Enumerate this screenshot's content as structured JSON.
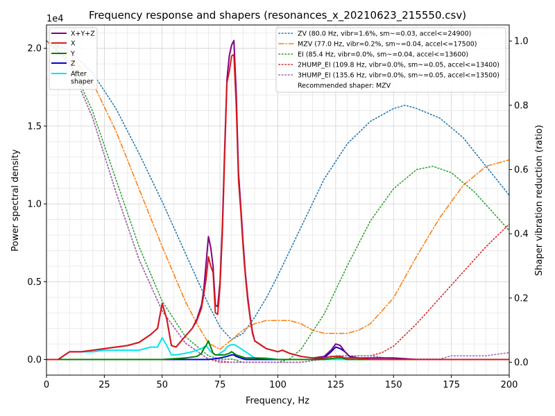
{
  "chart_data": {
    "type": "line",
    "title": "Frequency response and shapers (resonances_x_20210623_215550.csv)",
    "xlabel": "Frequency, Hz",
    "ylabel": "Power spectral density",
    "y2label": "Shaper vibration reduction (ratio)",
    "y_offset_label": "1e4",
    "xlim": [
      0,
      200
    ],
    "ylim": [
      -0.1,
      2.15
    ],
    "y2lim": [
      -0.04,
      1.05
    ],
    "xticks": [
      "0",
      "25",
      "50",
      "75",
      "100",
      "125",
      "150",
      "175",
      "200"
    ],
    "yticks": [
      "0.0",
      "0.5",
      "1.0",
      "1.5",
      "2.0"
    ],
    "y2ticks": [
      "0.0",
      "0.2",
      "0.4",
      "0.6",
      "0.8",
      "1.0"
    ],
    "grid": true,
    "psd_series": [
      {
        "name": "X+Y+Z",
        "color": "#800080",
        "x": [
          0,
          5,
          10,
          15,
          20,
          25,
          30,
          35,
          40,
          45,
          48,
          50,
          52,
          54,
          56,
          60,
          63,
          65,
          67,
          68,
          69,
          70,
          71,
          72,
          73,
          74,
          75,
          76,
          77,
          78,
          79,
          80,
          81,
          82,
          83,
          84,
          85,
          86,
          87,
          88,
          89,
          90,
          92,
          95,
          100,
          102,
          105,
          110,
          115,
          120,
          123,
          125,
          127,
          129,
          131,
          135,
          140,
          150,
          160,
          170,
          180,
          190,
          200
        ],
        "values": [
          0.0,
          0.0,
          0.05,
          0.05,
          0.06,
          0.07,
          0.08,
          0.09,
          0.11,
          0.16,
          0.2,
          0.36,
          0.26,
          0.09,
          0.08,
          0.15,
          0.2,
          0.26,
          0.35,
          0.45,
          0.62,
          0.79,
          0.72,
          0.6,
          0.35,
          0.34,
          0.5,
          0.85,
          1.35,
          1.8,
          1.95,
          2.02,
          2.05,
          1.72,
          1.2,
          0.98,
          0.75,
          0.55,
          0.4,
          0.28,
          0.18,
          0.12,
          0.1,
          0.07,
          0.05,
          0.06,
          0.04,
          0.02,
          0.01,
          0.02,
          0.06,
          0.1,
          0.09,
          0.05,
          0.02,
          0.01,
          0.01,
          0.01,
          0.0,
          0.0,
          0.0,
          0.0,
          0.0
        ]
      },
      {
        "name": "X",
        "color": "#d61a1a",
        "x": [
          0,
          5,
          10,
          15,
          20,
          25,
          30,
          35,
          40,
          45,
          48,
          50,
          52,
          54,
          56,
          60,
          63,
          65,
          67,
          68,
          69,
          70,
          71,
          72,
          73,
          74,
          75,
          76,
          77,
          78,
          79,
          80,
          81,
          82,
          83,
          84,
          85,
          86,
          87,
          88,
          89,
          90,
          92,
          95,
          100,
          102,
          105,
          110,
          115,
          120,
          123,
          125,
          127,
          129,
          131,
          135,
          140,
          150,
          160,
          170,
          180,
          190,
          200
        ],
        "values": [
          0.0,
          0.0,
          0.05,
          0.05,
          0.06,
          0.07,
          0.08,
          0.09,
          0.11,
          0.16,
          0.2,
          0.36,
          0.26,
          0.09,
          0.08,
          0.15,
          0.2,
          0.25,
          0.33,
          0.42,
          0.52,
          0.66,
          0.6,
          0.56,
          0.3,
          0.29,
          0.47,
          0.8,
          1.3,
          1.78,
          1.85,
          1.95,
          1.96,
          1.64,
          1.15,
          0.95,
          0.72,
          0.53,
          0.38,
          0.27,
          0.17,
          0.12,
          0.1,
          0.07,
          0.05,
          0.06,
          0.04,
          0.02,
          0.01,
          0.01,
          0.02,
          0.02,
          0.02,
          0.01,
          0.01,
          0.01,
          0.0,
          0.0,
          0.0,
          0.0,
          0.0,
          0.0,
          0.0
        ]
      },
      {
        "name": "Y",
        "color": "#008000",
        "x": [
          0,
          50,
          60,
          65,
          67,
          68,
          69,
          70,
          71,
          72,
          73,
          75,
          77,
          79,
          80,
          81,
          82,
          84,
          86,
          90,
          100,
          110,
          120,
          125,
          128,
          130,
          140,
          150,
          200
        ],
        "values": [
          0.0,
          0.0,
          0.01,
          0.02,
          0.04,
          0.07,
          0.09,
          0.12,
          0.08,
          0.04,
          0.03,
          0.03,
          0.03,
          0.04,
          0.05,
          0.04,
          0.03,
          0.02,
          0.01,
          0.01,
          0.0,
          0.0,
          0.0,
          0.01,
          0.01,
          0.0,
          0.0,
          0.0,
          0.0
        ]
      },
      {
        "name": "Z",
        "color": "#0000cd",
        "x": [
          0,
          50,
          60,
          70,
          75,
          78,
          80,
          81,
          82,
          84,
          86,
          90,
          100,
          110,
          115,
          120,
          123,
          125,
          127,
          129,
          131,
          135,
          140,
          150,
          160,
          200
        ],
        "values": [
          0.0,
          0.0,
          0.0,
          0.0,
          0.01,
          0.02,
          0.03,
          0.03,
          0.02,
          0.01,
          0.0,
          0.0,
          0.0,
          0.0,
          0.0,
          0.01,
          0.05,
          0.08,
          0.07,
          0.05,
          0.02,
          0.01,
          0.0,
          0.0,
          0.0,
          0.0
        ]
      },
      {
        "name": "After\nshaper",
        "color": "#00e5ee",
        "x": [
          0,
          5,
          10,
          15,
          20,
          25,
          30,
          35,
          40,
          45,
          48,
          50,
          52,
          54,
          56,
          60,
          63,
          65,
          67,
          68,
          69,
          70,
          71,
          72,
          73,
          74,
          75,
          76,
          77,
          78,
          79,
          80,
          81,
          82,
          83,
          84,
          85,
          86,
          87,
          88,
          89,
          90,
          92,
          95,
          100,
          105,
          110,
          120,
          130,
          140,
          150,
          200
        ],
        "values": [
          0.0,
          0.0,
          0.05,
          0.05,
          0.05,
          0.06,
          0.06,
          0.06,
          0.06,
          0.08,
          0.08,
          0.14,
          0.09,
          0.03,
          0.03,
          0.04,
          0.05,
          0.06,
          0.07,
          0.08,
          0.09,
          0.07,
          0.05,
          0.04,
          0.03,
          0.03,
          0.04,
          0.05,
          0.06,
          0.08,
          0.09,
          0.095,
          0.095,
          0.09,
          0.08,
          0.07,
          0.06,
          0.05,
          0.04,
          0.03,
          0.02,
          0.01,
          0.01,
          0.01,
          0.0,
          0.0,
          0.0,
          0.0,
          0.0,
          0.0,
          0.0,
          0.0
        ]
      }
    ],
    "shaper_series": [
      {
        "name": "ZV (80.0 Hz, vibr=1.6%, sm~=0.03, accel<=24900)",
        "color": "#1f77b4",
        "dash": "dotted",
        "x": [
          0,
          10,
          20,
          30,
          40,
          50,
          55,
          60,
          65,
          70,
          75,
          80,
          85,
          90,
          95,
          100,
          110,
          120,
          130,
          140,
          150,
          155,
          160,
          170,
          180,
          190,
          200
        ],
        "values": [
          1.0,
          0.97,
          0.9,
          0.79,
          0.65,
          0.5,
          0.42,
          0.34,
          0.26,
          0.18,
          0.11,
          0.07,
          0.09,
          0.14,
          0.2,
          0.27,
          0.42,
          0.57,
          0.68,
          0.75,
          0.79,
          0.8,
          0.79,
          0.76,
          0.7,
          0.61,
          0.52
        ]
      },
      {
        "name": "MZV (77.0 Hz, vibr=0.2%, sm~=0.04, accel<=17500)",
        "color": "#ff7f0e",
        "dash": "dashdot",
        "x": [
          0,
          10,
          20,
          30,
          40,
          50,
          60,
          65,
          70,
          75,
          80,
          85,
          90,
          95,
          100,
          105,
          110,
          115,
          120,
          125,
          130,
          135,
          140,
          150,
          160,
          170,
          180,
          190,
          200
        ],
        "values": [
          1.0,
          0.96,
          0.87,
          0.72,
          0.54,
          0.36,
          0.19,
          0.12,
          0.06,
          0.04,
          0.07,
          0.1,
          0.12,
          0.13,
          0.13,
          0.13,
          0.12,
          0.1,
          0.09,
          0.09,
          0.09,
          0.1,
          0.12,
          0.2,
          0.33,
          0.45,
          0.55,
          0.61,
          0.63
        ]
      },
      {
        "name": "EI (85.4 Hz, vibr=0.0%, sm~=0.04, accel<=13600)",
        "color": "#2ca02c",
        "dash": "dotted",
        "x": [
          0,
          10,
          20,
          30,
          40,
          50,
          60,
          70,
          75,
          80,
          85,
          90,
          95,
          100,
          105,
          110,
          120,
          130,
          140,
          150,
          160,
          167,
          175,
          185,
          200
        ],
        "values": [
          1.0,
          0.94,
          0.78,
          0.57,
          0.36,
          0.19,
          0.08,
          0.02,
          0.01,
          0.01,
          0.0,
          0.0,
          0.0,
          0.0,
          0.01,
          0.04,
          0.15,
          0.3,
          0.44,
          0.54,
          0.6,
          0.61,
          0.59,
          0.53,
          0.41
        ]
      },
      {
        "name": "2HUMP_EI (109.8 Hz, vibr=0.0%, sm~=0.05, accel<=13400)",
        "color": "#d62728",
        "dash": "dotted",
        "x": [
          0,
          10,
          20,
          30,
          40,
          50,
          60,
          70,
          75,
          80,
          90,
          100,
          110,
          120,
          125,
          130,
          140,
          145,
          150,
          160,
          170,
          180,
          190,
          200
        ],
        "values": [
          1.0,
          0.93,
          0.76,
          0.53,
          0.32,
          0.16,
          0.06,
          0.01,
          0.0,
          0.0,
          0.0,
          0.0,
          0.0,
          0.01,
          0.02,
          0.02,
          0.02,
          0.03,
          0.05,
          0.12,
          0.2,
          0.28,
          0.36,
          0.43
        ]
      },
      {
        "name": "3HUMP_EI (135.6 Hz, vibr=0.0%, sm~=0.05, accel<=13500)",
        "color": "#9467bd",
        "dash": "dotted",
        "x": [
          0,
          10,
          20,
          30,
          40,
          50,
          60,
          70,
          80,
          90,
          100,
          110,
          120,
          125,
          130,
          140,
          150,
          160,
          165,
          170,
          175,
          180,
          190,
          200
        ],
        "values": [
          1.0,
          0.93,
          0.76,
          0.53,
          0.32,
          0.16,
          0.06,
          0.01,
          0.0,
          0.0,
          0.0,
          0.0,
          0.01,
          0.02,
          0.02,
          0.02,
          0.01,
          0.01,
          0.01,
          0.01,
          0.02,
          0.02,
          0.02,
          0.03
        ]
      }
    ],
    "legend_psd": [
      "X+Y+Z",
      "X",
      "Y",
      "Z",
      "After\nshaper"
    ],
    "legend_shapers_note": "Recommended shaper: MZV"
  }
}
